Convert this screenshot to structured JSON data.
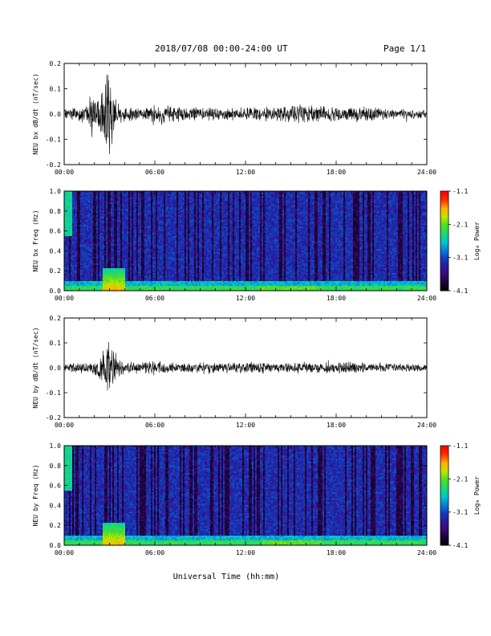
{
  "header": {
    "title": "2018/07/08  00:00-24:00 UT",
    "page": "Page 1/1"
  },
  "colors": {
    "trace": "#000000",
    "colormap": [
      "#000000",
      "#1a0030",
      "#3a0a6e",
      "#2a1a9a",
      "#1040c0",
      "#0a80d8",
      "#00c8c8",
      "#20d870",
      "#50e020",
      "#c8e000",
      "#ffb000",
      "#ff3000",
      "#ff0000"
    ]
  },
  "chart_data": [
    {
      "type": "line",
      "ylabel": "NEU bx dB/dt (nT/sec)",
      "ylim": [
        -0.2,
        0.2
      ],
      "yticks": [
        "0.2",
        "0.1",
        "0.0",
        "-0.1",
        "-0.2"
      ],
      "yticks_values": [
        0.2,
        0.1,
        0.0,
        -0.1,
        -0.2
      ],
      "xlim_hours": [
        0,
        24
      ],
      "xticks": [
        "00:00",
        "06:00",
        "12:00",
        "18:00",
        "24:00"
      ],
      "series": [
        {
          "x_hours": [
            0,
            0.5,
            1,
            1.5,
            1.8,
            2,
            2.4,
            2.6,
            2.8,
            3,
            3.2,
            3.5,
            4,
            5,
            6,
            6.5,
            7,
            8,
            9,
            10,
            11,
            12,
            13,
            14,
            15,
            16,
            17,
            18,
            19,
            20,
            21,
            22,
            23,
            24
          ],
          "envelope": [
            0.02,
            0.025,
            0.03,
            0.03,
            0.1,
            0.05,
            0.07,
            0.18,
            0.2,
            0.16,
            0.12,
            0.05,
            0.03,
            0.025,
            0.035,
            0.04,
            0.03,
            0.03,
            0.025,
            0.025,
            0.025,
            0.025,
            0.025,
            0.03,
            0.035,
            0.04,
            0.035,
            0.03,
            0.03,
            0.03,
            0.025,
            0.02,
            0.02,
            0.015
          ]
        }
      ]
    },
    {
      "type": "heatmap",
      "ylabel": "NEU bx Freq (Hz)",
      "ylim": [
        0.0,
        1.0
      ],
      "yticks": [
        "1.0",
        "0.8",
        "0.6",
        "0.4",
        "0.2",
        "0.0"
      ],
      "yticks_values": [
        1.0,
        0.8,
        0.6,
        0.4,
        0.2,
        0.0
      ],
      "xlim_hours": [
        0,
        24
      ],
      "xticks": [
        "00:00",
        "06:00",
        "12:00",
        "18:00",
        "24:00"
      ],
      "colorbar": {
        "label": "Log₀ Power",
        "ticks": [
          "-1.1",
          "-2.1",
          "-3.1",
          "-4.1"
        ],
        "range": [
          -4.1,
          -1.1
        ]
      },
      "features": {
        "low_freq_band_hz": 0.05,
        "burst_hours": [
          2.5,
          4.0
        ]
      }
    },
    {
      "type": "line",
      "ylabel": "NEU by dB/dt (nT/sec)",
      "ylim": [
        -0.2,
        0.2
      ],
      "yticks": [
        "0.2",
        "0.1",
        "0.0",
        "-0.1",
        "-0.2"
      ],
      "yticks_values": [
        0.2,
        0.1,
        0.0,
        -0.1,
        -0.2
      ],
      "xlim_hours": [
        0,
        24
      ],
      "xticks": [
        "00:00",
        "06:00",
        "12:00",
        "18:00",
        "24:00"
      ],
      "series": [
        {
          "x_hours": [
            0,
            0.5,
            1,
            1.5,
            2,
            2.5,
            2.7,
            2.8,
            3,
            3.3,
            3.6,
            4,
            5,
            6,
            6.5,
            7,
            8,
            9,
            10,
            11,
            12,
            13,
            14,
            15,
            16,
            17,
            18,
            19,
            20,
            21,
            22,
            23,
            24
          ],
          "envelope": [
            0.015,
            0.02,
            0.02,
            0.025,
            0.03,
            0.06,
            0.1,
            0.13,
            0.1,
            0.07,
            0.04,
            0.025,
            0.02,
            0.03,
            0.025,
            0.02,
            0.02,
            0.02,
            0.02,
            0.02,
            0.025,
            0.02,
            0.02,
            0.02,
            0.025,
            0.02,
            0.025,
            0.025,
            0.02,
            0.02,
            0.02,
            0.015,
            0.012
          ]
        }
      ]
    },
    {
      "type": "heatmap",
      "ylabel": "NEU by Freq (Hz)",
      "ylim": [
        0.0,
        1.0
      ],
      "yticks": [
        "1.0",
        "0.8",
        "0.6",
        "0.4",
        "0.2",
        "0.0"
      ],
      "yticks_values": [
        1.0,
        0.8,
        0.6,
        0.4,
        0.2,
        0.0
      ],
      "xlim_hours": [
        0,
        24
      ],
      "xticks": [
        "00:00",
        "06:00",
        "12:00",
        "18:00",
        "24:00"
      ],
      "colorbar": {
        "label": "Log₀ Power",
        "ticks": [
          "-1.1",
          "-2.1",
          "-3.1",
          "-4.1"
        ],
        "range": [
          -4.1,
          -1.1
        ]
      },
      "features": {
        "low_freq_band_hz": 0.05,
        "burst_hours": [
          2.5,
          4.0
        ]
      }
    }
  ],
  "xlabel": "Universal Time (hh:mm)"
}
